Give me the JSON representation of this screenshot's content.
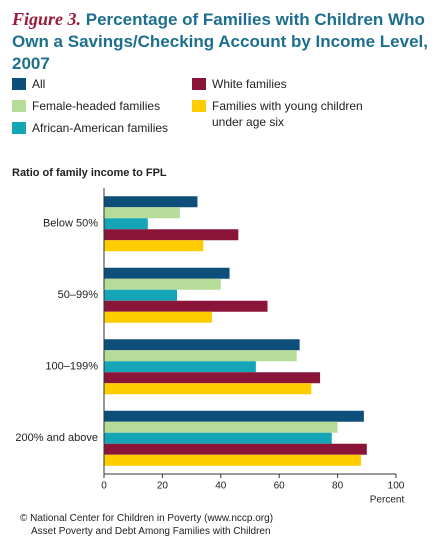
{
  "chart_data": {
    "type": "hbar",
    "figure_label": "Figure 3.",
    "title": "Percentage of Families with Children Who Own a Savings/Checking Account by Income Level, 2007",
    "y_label": "Ratio of family income to FPL",
    "x_label": "Percent",
    "categories": [
      "Below 50%",
      "50–99%",
      "100–199%",
      "200% and above"
    ],
    "series": [
      {
        "name": "All",
        "color": "#0d4f7a",
        "values": [
          32,
          43,
          67,
          89
        ]
      },
      {
        "name": "Female-headed families",
        "color": "#b6dc9a",
        "values": [
          26,
          40,
          66,
          80
        ]
      },
      {
        "name": "African-American families",
        "color": "#14a6b6",
        "values": [
          15,
          25,
          52,
          78
        ]
      },
      {
        "name": "White families",
        "color": "#8a1538",
        "values": [
          46,
          56,
          74,
          90
        ]
      },
      {
        "name": "Families with young children under age six",
        "color": "#ffcc00",
        "values": [
          34,
          37,
          71,
          88
        ]
      }
    ],
    "xlim": [
      0,
      100
    ],
    "xticks": [
      0,
      20,
      40,
      60,
      80,
      100
    ],
    "source": "© National Center for Children in Poverty (www.nccp.org)",
    "note": "Asset Poverty and Debt Among Families with Children"
  }
}
